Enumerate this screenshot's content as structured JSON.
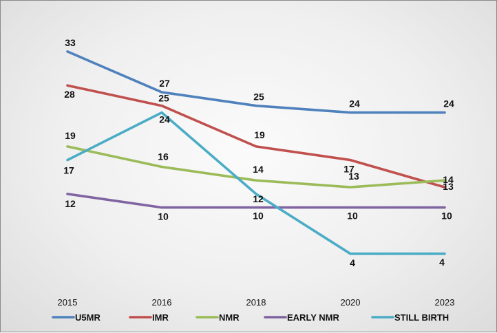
{
  "chart_data": {
    "type": "line",
    "title": "",
    "xlabel": "",
    "ylabel": "",
    "grid": false,
    "legend_position": "bottom",
    "categories": [
      "2015",
      "2016",
      "2018",
      "2020",
      "2023"
    ],
    "ylim": [
      0,
      36
    ],
    "series": [
      {
        "name": "U5MR",
        "color": "#4f81bd",
        "values": [
          33,
          27,
          25,
          24,
          24
        ]
      },
      {
        "name": "IMR",
        "color": "#c0504d",
        "values": [
          28,
          25,
          19,
          17,
          13
        ]
      },
      {
        "name": "NMR",
        "color": "#9bbb59",
        "values": [
          19,
          16,
          14,
          13,
          14
        ]
      },
      {
        "name": "EARLY NMR",
        "color": "#8064a2",
        "values": [
          12,
          10,
          10,
          10,
          10
        ]
      },
      {
        "name": "STILL BIRTH",
        "color": "#4bacc6",
        "values": [
          17,
          24,
          12,
          4,
          4
        ]
      }
    ]
  }
}
